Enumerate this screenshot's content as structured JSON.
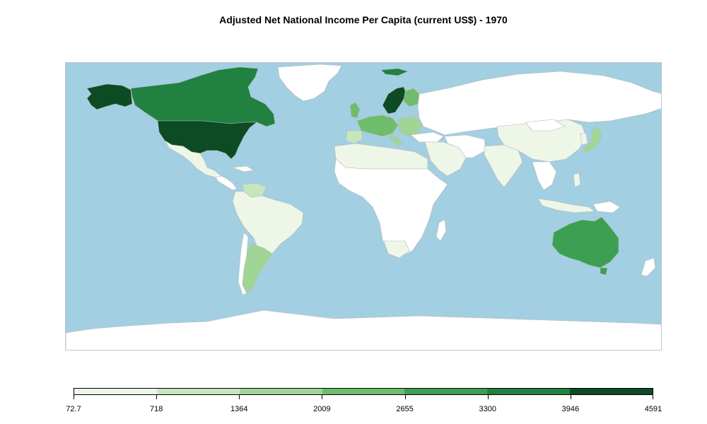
{
  "title": "Adjusted Net National Income Per Capita (current US$) -  1970",
  "legend": {
    "breaks": [
      "72.7",
      "718",
      "1364",
      "2009",
      "2655",
      "3300",
      "3946",
      "4591"
    ],
    "colors": [
      "#eef6e8",
      "#c6e6bd",
      "#a0d595",
      "#6fbd6c",
      "#3d9f52",
      "#218141",
      "#0c4b24"
    ]
  },
  "map": {
    "ocean_color": "#a2cfe1",
    "no_data_color": "#ffffff",
    "border_color": "#b9b9b9"
  },
  "chart_data": {
    "type": "choropleth",
    "title": "Adjusted Net National Income Per Capita (current US$) -  1970",
    "legend_breaks": [
      72.7,
      718,
      1364,
      2009,
      2655,
      3300,
      3946,
      4591
    ],
    "legend_placement": "bottom"
  }
}
